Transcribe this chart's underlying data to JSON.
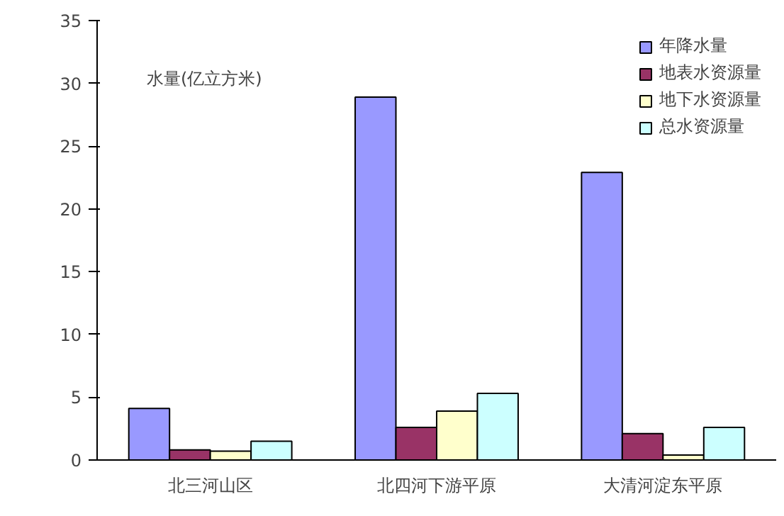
{
  "chart_data": {
    "type": "bar",
    "ylabel": "水量(亿立方米)",
    "categories": [
      "北三河山区",
      "北四河下游平原",
      "大清河淀东平原"
    ],
    "series": [
      {
        "name": "年降水量",
        "color": "#9999ff",
        "values": [
          4.1,
          28.9,
          22.9
        ]
      },
      {
        "name": "地表水资源量",
        "color": "#993366",
        "values": [
          0.8,
          2.6,
          2.1
        ]
      },
      {
        "name": "地下水资源量",
        "color": "#ffffcc",
        "values": [
          0.7,
          3.9,
          0.4
        ]
      },
      {
        "name": "总水资源量",
        "color": "#ccffff",
        "values": [
          1.5,
          5.3,
          2.6
        ]
      }
    ],
    "ylim": [
      0,
      35
    ],
    "yticks": [
      0,
      5,
      10,
      15,
      20,
      25,
      30,
      35
    ],
    "grid": false,
    "legend": "top right"
  }
}
